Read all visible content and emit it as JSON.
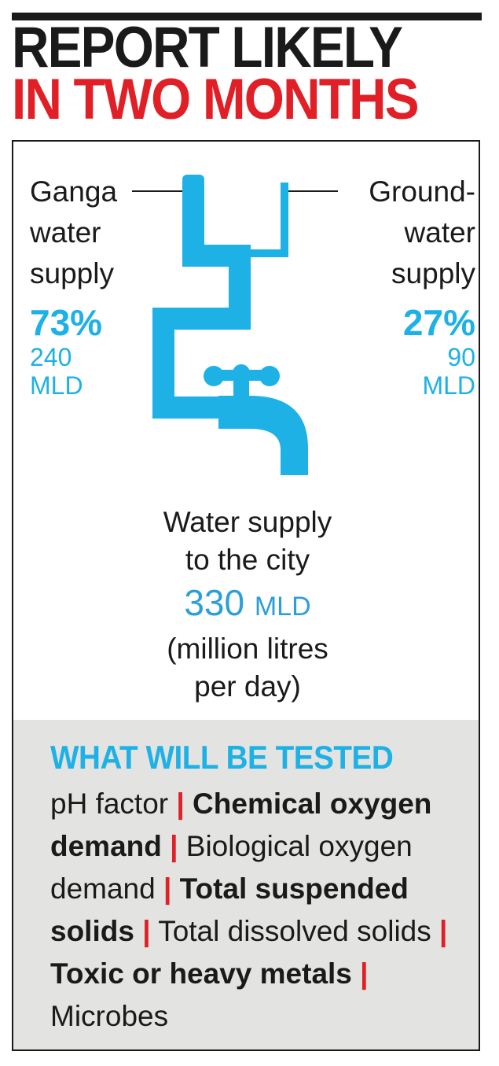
{
  "headline": {
    "line1": "REPORT LIKELY",
    "line2": "IN TWO MONTHS"
  },
  "sources": {
    "ganga": {
      "label_lines": [
        "Ganga",
        "water",
        "supply"
      ],
      "percent": "73%",
      "volume": "240",
      "unit": "MLD"
    },
    "ground": {
      "label_lines": [
        "Ground-",
        "water",
        "supply"
      ],
      "percent": "27%",
      "volume": "90",
      "unit": "MLD"
    }
  },
  "city": {
    "line1": "Water supply",
    "line2": "to the city",
    "total_value": "330",
    "total_unit": "MLD",
    "note_line1": "(million litres",
    "note_line2": "per day)"
  },
  "tests": {
    "title": "WHAT WILL BE TESTED",
    "items": [
      {
        "text": "pH factor",
        "bold": false
      },
      {
        "text": "Chemical oxygen demand",
        "bold": true
      },
      {
        "text": "Biological oxygen demand",
        "bold": false
      },
      {
        "text": "Total suspended solids",
        "bold": true
      },
      {
        "text": "Total dissolved solids",
        "bold": false
      },
      {
        "text": "Toxic or heavy metals",
        "bold": true
      },
      {
        "text": "Microbes",
        "bold": false
      }
    ],
    "separator": "|"
  },
  "colors": {
    "pipe": "#1eb1e6",
    "accent_red": "#e11f26",
    "panel_bg": "#e3e3e1"
  }
}
